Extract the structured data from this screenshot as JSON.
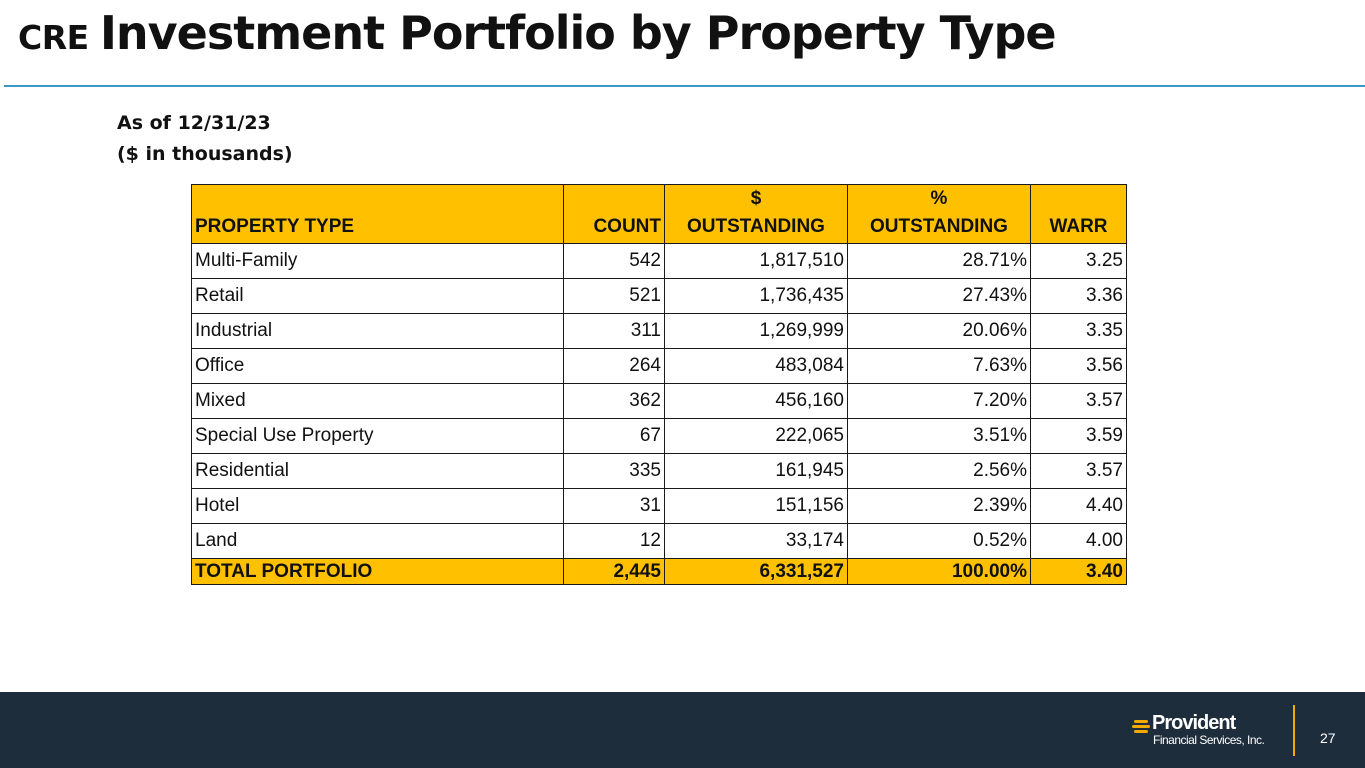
{
  "title": {
    "prefix": "CRE",
    "main": "Investment Portfolio by Property Type"
  },
  "subtitle": {
    "date_line": "As of 12/31/23",
    "units_line": "($ in thousands)"
  },
  "table": {
    "headers": {
      "property_type": "PROPERTY TYPE",
      "count": "COUNT",
      "dollar_top": "$",
      "dollar_bottom": "OUTSTANDING",
      "pct_top": "%",
      "pct_bottom": "OUTSTANDING",
      "warr": "WARR"
    },
    "rows": [
      {
        "type": "Multi-Family",
        "count": "542",
        "outstanding": "1,817,510",
        "pct": "28.71%",
        "warr": "3.25"
      },
      {
        "type": "Retail",
        "count": "521",
        "outstanding": "1,736,435",
        "pct": "27.43%",
        "warr": "3.36"
      },
      {
        "type": "Industrial",
        "count": "311",
        "outstanding": "1,269,999",
        "pct": "20.06%",
        "warr": "3.35"
      },
      {
        "type": "Office",
        "count": "264",
        "outstanding": "483,084",
        "pct": "7.63%",
        "warr": "3.56"
      },
      {
        "type": "Mixed",
        "count": "362",
        "outstanding": "456,160",
        "pct": "7.20%",
        "warr": "3.57"
      },
      {
        "type": "Special Use Property",
        "count": "67",
        "outstanding": "222,065",
        "pct": "3.51%",
        "warr": "3.59"
      },
      {
        "type": "Residential",
        "count": "335",
        "outstanding": "161,945",
        "pct": "2.56%",
        "warr": "3.57"
      },
      {
        "type": "Hotel",
        "count": "31",
        "outstanding": "151,156",
        "pct": "2.39%",
        "warr": "4.40"
      },
      {
        "type": "Land",
        "count": "12",
        "outstanding": "33,174",
        "pct": "0.52%",
        "warr": "4.00"
      }
    ],
    "total": {
      "type": "TOTAL PORTFOLIO",
      "count": "2,445",
      "outstanding": "6,331,527",
      "pct": "100.00%",
      "warr": "3.40"
    }
  },
  "footer": {
    "logo_name": "Provident",
    "logo_sub": "Financial Services, Inc.",
    "page_number": "27"
  },
  "colors": {
    "header_fill": "#ffc000",
    "rule": "#3c97c4",
    "footer_bg": "#1d2d3c",
    "accent": "#f2a900"
  }
}
